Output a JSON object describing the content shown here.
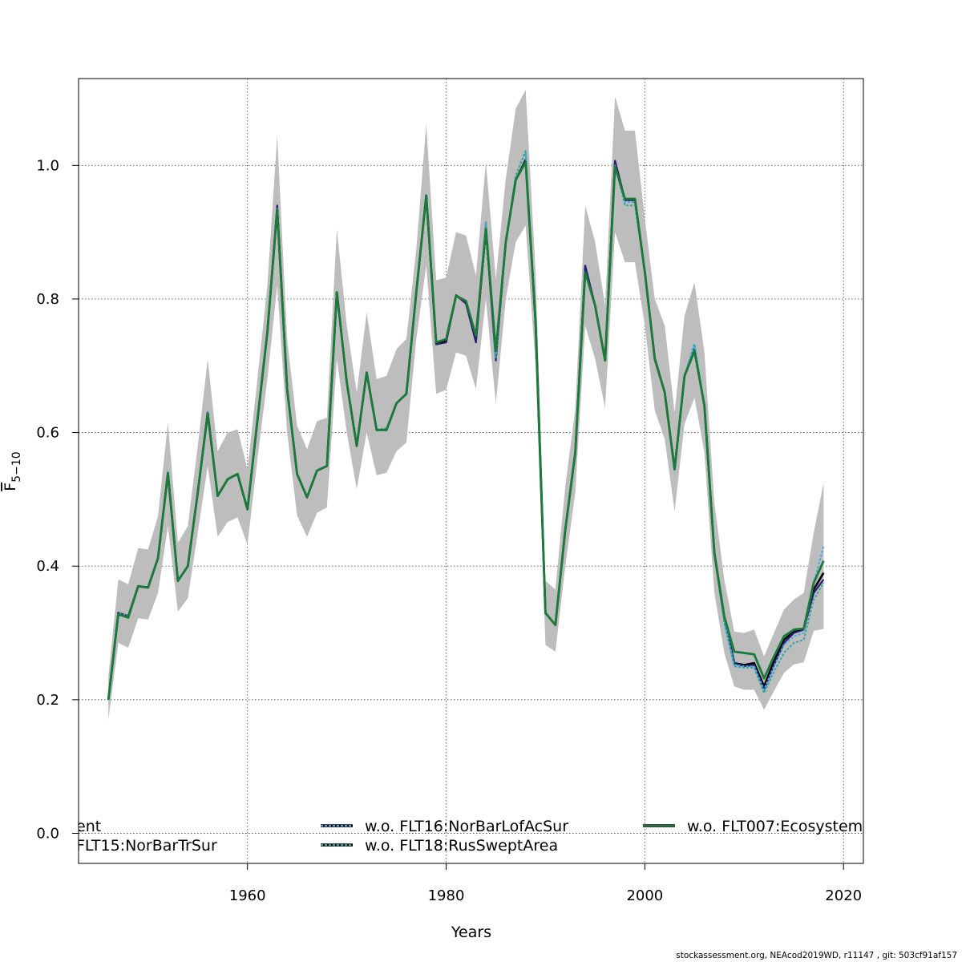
{
  "chart_data": {
    "type": "line",
    "title": "",
    "xlabel": "Years",
    "ylabel": "F̅ 5−10",
    "ylabel_main": "F",
    "ylabel_sub": "5−10",
    "xlim": [
      1943,
      2022
    ],
    "ylim": [
      -0.045,
      1.13
    ],
    "x_ticks": [
      1960,
      1980,
      2000,
      2020
    ],
    "y_ticks": [
      0.0,
      0.2,
      0.4,
      0.6,
      0.8,
      1.0
    ],
    "x_tick_labels": [
      "1960",
      "1980",
      "2000",
      "2020"
    ],
    "y_tick_labels": [
      "0.0",
      "0.2",
      "0.4",
      "0.6",
      "0.8",
      "1.0"
    ],
    "grid": true,
    "legend_placement": "bottom, clipped by plot region",
    "years": [
      1946,
      1947,
      1948,
      1949,
      1950,
      1951,
      1952,
      1953,
      1954,
      1955,
      1956,
      1957,
      1958,
      1959,
      1960,
      1961,
      1962,
      1963,
      1964,
      1965,
      1966,
      1967,
      1968,
      1969,
      1970,
      1971,
      1972,
      1973,
      1974,
      1975,
      1976,
      1977,
      1978,
      1979,
      1980,
      1981,
      1982,
      1983,
      1984,
      1985,
      1986,
      1987,
      1988,
      1989,
      1990,
      1991,
      1992,
      1993,
      1994,
      1995,
      1996,
      1997,
      1998,
      1999,
      2000,
      2001,
      2002,
      2003,
      2004,
      2005,
      2006,
      2007,
      2008,
      2009,
      2010,
      2011,
      2012,
      2013,
      2014,
      2015,
      2016,
      2017,
      2018
    ],
    "confidence_band": {
      "lower": [
        0.17,
        0.285,
        0.278,
        0.322,
        0.32,
        0.36,
        0.46,
        0.332,
        0.352,
        0.45,
        0.55,
        0.444,
        0.466,
        0.473,
        0.432,
        0.56,
        0.68,
        0.82,
        0.6,
        0.476,
        0.444,
        0.48,
        0.488,
        0.71,
        0.6,
        0.515,
        0.6,
        0.536,
        0.54,
        0.572,
        0.585,
        0.74,
        0.85,
        0.658,
        0.664,
        0.72,
        0.715,
        0.665,
        0.8,
        0.643,
        0.8,
        0.885,
        0.91,
        0.7,
        0.282,
        0.272,
        0.4,
        0.51,
        0.76,
        0.71,
        0.637,
        0.9,
        0.855,
        0.855,
        0.76,
        0.633,
        0.59,
        0.482,
        0.613,
        0.652,
        0.57,
        0.36,
        0.27,
        0.22,
        0.215,
        0.215,
        0.185,
        0.213,
        0.24,
        0.253,
        0.256,
        0.303,
        0.306
      ],
      "upper": [
        0.235,
        0.38,
        0.373,
        0.427,
        0.425,
        0.475,
        0.615,
        0.435,
        0.46,
        0.58,
        0.71,
        0.572,
        0.6,
        0.605,
        0.545,
        0.68,
        0.82,
        1.045,
        0.74,
        0.61,
        0.575,
        0.617,
        0.622,
        0.905,
        0.76,
        0.66,
        0.78,
        0.68,
        0.685,
        0.725,
        0.74,
        0.875,
        1.062,
        0.828,
        0.832,
        0.9,
        0.895,
        0.835,
        1.005,
        0.83,
        0.98,
        1.085,
        1.113,
        0.84,
        0.378,
        0.365,
        0.52,
        0.635,
        0.94,
        0.885,
        0.79,
        1.103,
        1.052,
        1.052,
        0.92,
        0.8,
        0.76,
        0.63,
        0.775,
        0.825,
        0.72,
        0.495,
        0.38,
        0.302,
        0.3,
        0.305,
        0.265,
        0.3,
        0.335,
        0.35,
        0.36,
        0.45,
        0.525
      ]
    },
    "series": [
      {
        "name": "",
        "color": "#000000",
        "width": 2.6,
        "dash": "",
        "values": [
          0.2,
          0.33,
          0.325,
          0.37,
          0.368,
          0.412,
          0.54,
          0.378,
          0.4,
          0.51,
          0.63,
          0.505,
          0.53,
          0.538,
          0.485,
          0.618,
          0.75,
          0.935,
          0.665,
          0.538,
          0.503,
          0.543,
          0.55,
          0.81,
          0.675,
          0.58,
          0.69,
          0.604,
          0.604,
          0.644,
          0.658,
          0.81,
          0.955,
          0.733,
          0.737,
          0.805,
          0.795,
          0.74,
          0.905,
          0.718,
          0.885,
          0.978,
          1.008,
          0.765,
          0.33,
          0.312,
          0.455,
          0.57,
          0.845,
          0.79,
          0.708,
          1.005,
          0.948,
          0.95,
          0.84,
          0.71,
          0.66,
          0.545,
          0.685,
          0.725,
          0.64,
          0.42,
          0.32,
          0.255,
          0.252,
          0.255,
          0.22,
          0.258,
          0.29,
          0.302,
          0.305,
          0.365,
          0.39
        ]
      },
      {
        "name": "",
        "color": "#2a1a70",
        "width": 2.2,
        "dash": "",
        "values": [
          0.2,
          0.33,
          0.325,
          0.37,
          0.368,
          0.412,
          0.54,
          0.378,
          0.4,
          0.51,
          0.63,
          0.505,
          0.53,
          0.538,
          0.485,
          0.618,
          0.75,
          0.94,
          0.665,
          0.538,
          0.503,
          0.543,
          0.55,
          0.81,
          0.675,
          0.58,
          0.69,
          0.604,
          0.604,
          0.644,
          0.658,
          0.81,
          0.955,
          0.732,
          0.735,
          0.806,
          0.793,
          0.735,
          0.903,
          0.708,
          0.885,
          0.978,
          1.005,
          0.765,
          0.33,
          0.312,
          0.455,
          0.57,
          0.85,
          0.79,
          0.708,
          1.007,
          0.948,
          0.948,
          0.84,
          0.712,
          0.66,
          0.545,
          0.685,
          0.725,
          0.64,
          0.42,
          0.32,
          0.255,
          0.25,
          0.252,
          0.215,
          0.252,
          0.285,
          0.3,
          0.305,
          0.36,
          0.38
        ]
      },
      {
        "name": "w.o. FLT16:NorBarLofAcSur",
        "color": "#4aa8e8",
        "width": 2.0,
        "dash": "3,2",
        "values": [
          0.2,
          0.33,
          0.325,
          0.37,
          0.368,
          0.412,
          0.54,
          0.378,
          0.4,
          0.51,
          0.63,
          0.505,
          0.53,
          0.538,
          0.485,
          0.618,
          0.75,
          0.935,
          0.665,
          0.538,
          0.503,
          0.543,
          0.55,
          0.81,
          0.675,
          0.58,
          0.69,
          0.604,
          0.604,
          0.644,
          0.658,
          0.81,
          0.955,
          0.735,
          0.74,
          0.805,
          0.797,
          0.745,
          0.915,
          0.71,
          0.885,
          0.985,
          1.02,
          0.765,
          0.33,
          0.312,
          0.455,
          0.57,
          0.84,
          0.79,
          0.708,
          1.0,
          0.945,
          0.945,
          0.84,
          0.71,
          0.66,
          0.545,
          0.685,
          0.73,
          0.64,
          0.42,
          0.318,
          0.252,
          0.25,
          0.25,
          0.215,
          0.25,
          0.282,
          0.295,
          0.3,
          0.375,
          0.43
        ]
      },
      {
        "name": "w.o. FLT18:RusSweptArea",
        "color": "#2fa8a0",
        "width": 2.0,
        "dash": "3,2",
        "values": [
          0.2,
          0.33,
          0.325,
          0.37,
          0.368,
          0.412,
          0.54,
          0.378,
          0.4,
          0.51,
          0.63,
          0.505,
          0.53,
          0.538,
          0.485,
          0.618,
          0.75,
          0.935,
          0.665,
          0.538,
          0.503,
          0.543,
          0.55,
          0.81,
          0.675,
          0.58,
          0.69,
          0.604,
          0.607,
          0.644,
          0.658,
          0.81,
          0.955,
          0.735,
          0.74,
          0.805,
          0.797,
          0.745,
          0.915,
          0.712,
          0.885,
          0.985,
          1.022,
          0.765,
          0.33,
          0.312,
          0.455,
          0.57,
          0.84,
          0.79,
          0.708,
          1.0,
          0.94,
          0.94,
          0.84,
          0.71,
          0.66,
          0.545,
          0.685,
          0.733,
          0.64,
          0.42,
          0.315,
          0.25,
          0.248,
          0.248,
          0.21,
          0.242,
          0.27,
          0.285,
          0.29,
          0.35,
          0.375
        ]
      },
      {
        "name": "w.o. FLT007:Ecosystem",
        "color": "#1a7a3a",
        "width": 2.8,
        "dash": "",
        "values": [
          0.2,
          0.328,
          0.323,
          0.37,
          0.368,
          0.412,
          0.538,
          0.378,
          0.4,
          0.51,
          0.628,
          0.505,
          0.53,
          0.538,
          0.485,
          0.618,
          0.75,
          0.933,
          0.665,
          0.538,
          0.503,
          0.543,
          0.55,
          0.81,
          0.675,
          0.58,
          0.69,
          0.604,
          0.604,
          0.644,
          0.658,
          0.81,
          0.955,
          0.735,
          0.74,
          0.805,
          0.797,
          0.745,
          0.905,
          0.722,
          0.885,
          0.978,
          1.005,
          0.765,
          0.33,
          0.312,
          0.455,
          0.57,
          0.84,
          0.79,
          0.708,
          0.998,
          0.95,
          0.95,
          0.84,
          0.71,
          0.66,
          0.545,
          0.685,
          0.722,
          0.64,
          0.42,
          0.325,
          0.272,
          0.27,
          0.268,
          0.232,
          0.265,
          0.295,
          0.305,
          0.307,
          0.375,
          0.408
        ]
      }
    ],
    "legend": [
      {
        "label": "ent",
        "color": "#000000",
        "dash": ""
      },
      {
        "label": "FLT15:NorBarTrSur",
        "color": "#2a1a70",
        "dash": ""
      },
      {
        "label": "w.o. FLT16:NorBarLofAcSur",
        "color": "#4aa8e8",
        "dash": "3,2"
      },
      {
        "label": "w.o. FLT18:RusSweptArea",
        "color": "#2fa8a0",
        "dash": "3,2"
      },
      {
        "label": "w.o. FLT007:Ecosystem",
        "color": "#1a7a3a",
        "dash": ""
      }
    ],
    "band_color": "#bdbdbd"
  },
  "footer": {
    "text": "stockassessment.org, NEAcod2019WD, r11147 , git: 503cf91af157"
  }
}
